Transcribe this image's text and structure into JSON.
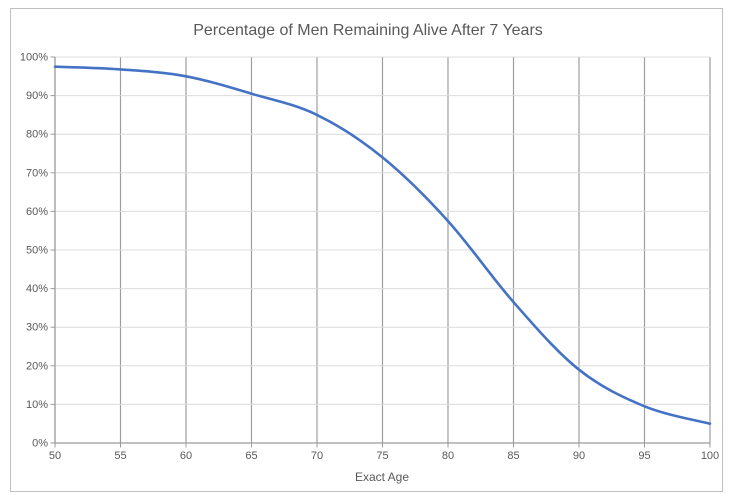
{
  "chart_data": {
    "type": "line",
    "title": "Percentage of Men Remaining Alive After 7 Years",
    "xlabel": "Exact Age",
    "ylabel": "",
    "x": [
      50,
      55,
      60,
      65,
      70,
      75,
      80,
      85,
      90,
      95,
      100
    ],
    "values": [
      97.5,
      96.8,
      95,
      90.5,
      85,
      74,
      57.5,
      36.5,
      19,
      9.5,
      5
    ],
    "x_tick_labels": [
      "50",
      "55",
      "60",
      "65",
      "70",
      "75",
      "80",
      "85",
      "90",
      "95",
      "100"
    ],
    "y_tick_labels": [
      "0%",
      "10%",
      "20%",
      "30%",
      "40%",
      "50%",
      "60%",
      "70%",
      "80%",
      "90%",
      "100%"
    ],
    "xlim": [
      50,
      100
    ],
    "ylim": [
      0,
      100
    ],
    "grid": {
      "vertical": true,
      "horizontal": true
    },
    "legend": "none",
    "colors": {
      "line": "#4472C4",
      "vertical_grid": "#9E9E9E",
      "horizontal_grid": "#DCDCDC",
      "axis": "#9B9B9B",
      "text": "#595959",
      "border": "#BFBFBF",
      "background": "#FFFFFF"
    }
  }
}
